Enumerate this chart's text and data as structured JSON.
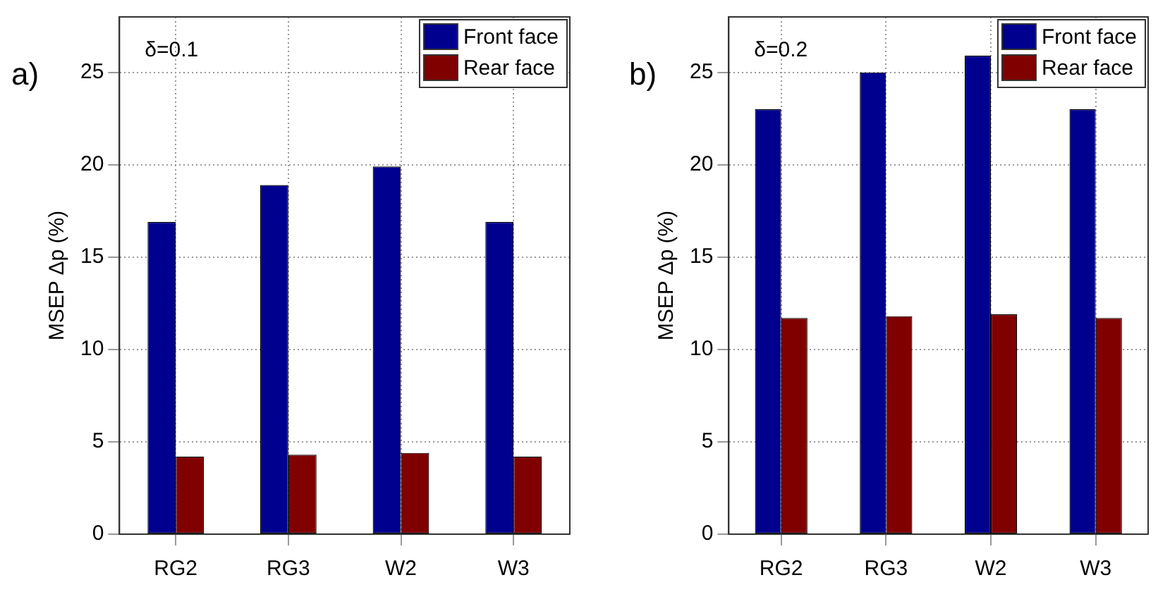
{
  "chart_data": [
    {
      "type": "bar",
      "categories": [
        "RG2",
        "RG3",
        "W2",
        "W3"
      ],
      "ylabel": "MSEP Δp (%)",
      "ylim": [
        0,
        28
      ],
      "yticks": [
        0,
        5,
        10,
        15,
        20,
        25
      ],
      "grid": true,
      "legend": "top right",
      "annotations": [
        "a)",
        "δ=0.1"
      ],
      "series": [
        {
          "name": "Front face",
          "color": "#00008f",
          "values": [
            16.9,
            18.9,
            19.9,
            16.9
          ]
        },
        {
          "name": "Rear face",
          "color": "#800000",
          "values": [
            4.2,
            4.3,
            4.4,
            4.2
          ]
        }
      ]
    },
    {
      "type": "bar",
      "categories": [
        "RG2",
        "RG3",
        "W2",
        "W3"
      ],
      "ylabel": "MSEP Δp (%)",
      "ylim": [
        0,
        28
      ],
      "yticks": [
        0,
        5,
        10,
        15,
        20,
        25
      ],
      "grid": true,
      "legend": "top right",
      "annotations": [
        "b)",
        "δ=0.2"
      ],
      "series": [
        {
          "name": "Front face",
          "color": "#00008f",
          "values": [
            23.0,
            25.0,
            25.9,
            23.0
          ]
        },
        {
          "name": "Rear face",
          "color": "#800000",
          "values": [
            11.7,
            11.8,
            11.9,
            11.7
          ]
        }
      ]
    }
  ]
}
